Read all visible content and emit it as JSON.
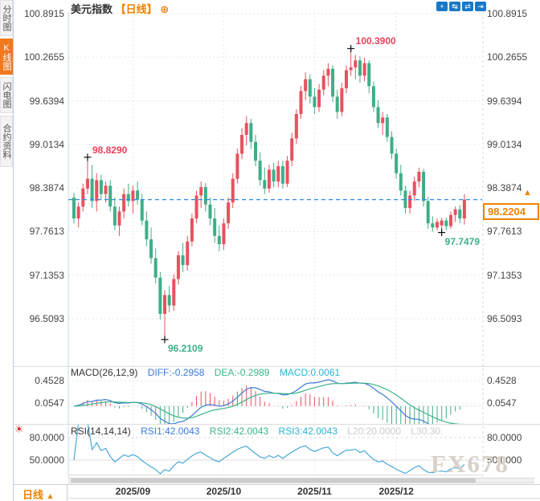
{
  "watermark": "FX678",
  "icons": {
    "blink": "☀"
  },
  "sidebar": {
    "tabs": [
      {
        "label": "分时图",
        "active": false
      },
      {
        "label": "K线图",
        "active": true
      },
      {
        "label": "闪电图",
        "active": false
      },
      {
        "label": "合约资料",
        "active": false
      }
    ]
  },
  "header": {
    "title": "美元指数",
    "period_tag": "【日线】",
    "add_icon": "⊕",
    "toolbar": [
      {
        "name": "crosshair-tool",
        "glyph": "+"
      },
      {
        "name": "zoom-range-tool",
        "glyph": "↹"
      },
      {
        "name": "zoom-scale-tool",
        "glyph": "⇄"
      },
      {
        "name": "pan-right-tool",
        "glyph": "⇥"
      }
    ]
  },
  "price_axis": {
    "labels": [
      "100.8915",
      "100.2655",
      "99.6394",
      "99.0134",
      "98.3874",
      "97.7613",
      "97.1353",
      "96.5093"
    ]
  },
  "current_price": {
    "value": "98.2204",
    "arrow": "▲"
  },
  "macd_panel": {
    "legend": {
      "name": "MACD(26,12,9)",
      "diff": "DIFF:-0.2958",
      "dea": "DEA:-0.2989",
      "macd": "MACD:0.0061"
    },
    "axis_labels": [
      "0.4528",
      "0.0547"
    ]
  },
  "rsi_panel": {
    "legend": {
      "name": "RSI(14,14,14)",
      "rsi1": "RSI1:42.0043",
      "rsi2": "RSI2:42.0043",
      "rsi3": "RSI3:42.0043",
      "l20": "L20:20.0000",
      "l30": "L30:30."
    },
    "axis_labels": [
      "80.0000",
      "50.0000"
    ]
  },
  "x_axis": {
    "labels": [
      "2025/09",
      "2025/10",
      "2025/11",
      "2025/12"
    ]
  },
  "footer": {
    "period": "日线",
    "arrow": "▲"
  },
  "colors": {
    "up": "#e8515f",
    "down": "#3fae87",
    "accent_orange": "#f08200",
    "current_line": "#2b8ced",
    "diff_line": "#3a7bd5",
    "dea_line": "#3cb487",
    "rsi_line": "#4aa8d8",
    "grid": "#e6e6e6",
    "axis_text": "#444444"
  },
  "chart_data": {
    "type": "candlestick",
    "title": "美元指数 日线",
    "ylim": [
      96.1,
      100.95
    ],
    "y_ticks": [
      100.8915,
      100.2655,
      99.6394,
      99.0134,
      98.3874,
      97.7613,
      97.1353,
      96.5093
    ],
    "x_tick_labels": [
      "2025/09",
      "2025/10",
      "2025/11",
      "2025/12"
    ],
    "x_tick_indices": [
      13,
      33,
      53,
      71
    ],
    "current_price": 98.2204,
    "markers": [
      {
        "index": 3,
        "price": 98.829,
        "label": "98.8290",
        "dir": "high",
        "color": "red"
      },
      {
        "index": 20,
        "price": 96.2109,
        "label": "96.2109",
        "dir": "low",
        "color": "green"
      },
      {
        "index": 61,
        "price": 100.39,
        "label": "100.3900",
        "dir": "high",
        "color": "red"
      },
      {
        "index": 81,
        "price": 97.7479,
        "label": "97.7479",
        "dir": "low",
        "color": "green"
      }
    ],
    "indicators": {
      "macd": {
        "params": [
          26,
          12,
          9
        ],
        "diff": -0.2958,
        "dea": -0.2989,
        "macd": 0.0061
      },
      "rsi": {
        "params": [
          14,
          14,
          14
        ],
        "rsi1": 42.0043,
        "rsi2": 42.0043,
        "rsi3": 42.0043,
        "l20": 20.0,
        "l30": 30.0
      }
    },
    "candles": [
      [
        98.25,
        98.32,
        97.88,
        97.95
      ],
      [
        97.95,
        98.18,
        97.82,
        98.12
      ],
      [
        98.12,
        98.45,
        98.05,
        98.38
      ],
      [
        98.38,
        98.829,
        98.3,
        98.52
      ],
      [
        98.52,
        98.72,
        98.1,
        98.2
      ],
      [
        98.2,
        98.6,
        98.05,
        98.5
      ],
      [
        98.5,
        98.58,
        98.22,
        98.3
      ],
      [
        98.3,
        98.48,
        98.18,
        98.42
      ],
      [
        98.42,
        98.5,
        98.05,
        98.12
      ],
      [
        98.12,
        98.25,
        97.78,
        97.85
      ],
      [
        97.85,
        98.12,
        97.7,
        98.05
      ],
      [
        98.05,
        98.38,
        97.95,
        98.3
      ],
      [
        98.3,
        98.45,
        98.12,
        98.2
      ],
      [
        98.2,
        98.42,
        98.02,
        98.35
      ],
      [
        98.35,
        98.48,
        98.15,
        98.22
      ],
      [
        98.22,
        98.3,
        97.85,
        97.92
      ],
      [
        97.92,
        98.05,
        97.55,
        97.65
      ],
      [
        97.65,
        97.82,
        97.3,
        97.38
      ],
      [
        97.38,
        97.52,
        97.02,
        97.1
      ],
      [
        97.1,
        97.18,
        96.5,
        96.58
      ],
      [
        96.58,
        96.92,
        96.2109,
        96.85
      ],
      [
        96.85,
        96.98,
        96.6,
        96.7
      ],
      [
        96.7,
        97.15,
        96.62,
        97.08
      ],
      [
        97.08,
        97.48,
        97.0,
        97.42
      ],
      [
        97.42,
        97.6,
        97.18,
        97.28
      ],
      [
        97.28,
        97.7,
        97.2,
        97.62
      ],
      [
        97.62,
        98.02,
        97.55,
        97.95
      ],
      [
        97.95,
        98.35,
        97.88,
        98.28
      ],
      [
        98.28,
        98.48,
        98.1,
        98.4
      ],
      [
        98.4,
        98.46,
        98.05,
        98.15
      ],
      [
        98.15,
        98.25,
        97.85,
        97.95
      ],
      [
        97.95,
        98.1,
        97.6,
        97.7
      ],
      [
        97.7,
        97.85,
        97.48,
        97.58
      ],
      [
        97.58,
        97.95,
        97.5,
        97.88
      ],
      [
        97.88,
        98.25,
        97.8,
        98.18
      ],
      [
        98.18,
        98.6,
        98.1,
        98.52
      ],
      [
        98.52,
        98.95,
        98.45,
        98.88
      ],
      [
        98.88,
        99.25,
        98.8,
        99.15
      ],
      [
        99.15,
        99.42,
        99.0,
        99.32
      ],
      [
        99.32,
        99.38,
        98.95,
        99.05
      ],
      [
        99.05,
        99.15,
        98.7,
        98.78
      ],
      [
        98.78,
        98.9,
        98.42,
        98.5
      ],
      [
        98.5,
        98.68,
        98.3,
        98.38
      ],
      [
        98.38,
        98.72,
        98.32,
        98.65
      ],
      [
        98.65,
        98.75,
        98.4,
        98.48
      ],
      [
        98.48,
        98.78,
        98.4,
        98.7
      ],
      [
        98.7,
        98.78,
        98.38,
        98.45
      ],
      [
        98.45,
        98.85,
        98.4,
        98.78
      ],
      [
        98.78,
        99.18,
        98.7,
        99.1
      ],
      [
        99.1,
        99.52,
        99.02,
        99.45
      ],
      [
        99.45,
        99.85,
        99.38,
        99.78
      ],
      [
        99.78,
        100.05,
        99.65,
        99.95
      ],
      [
        99.95,
        100.02,
        99.6,
        99.7
      ],
      [
        99.7,
        99.82,
        99.45,
        99.55
      ],
      [
        99.55,
        99.88,
        99.48,
        99.8
      ],
      [
        99.8,
        100.08,
        99.72,
        100.0
      ],
      [
        100.0,
        100.18,
        99.85,
        100.1
      ],
      [
        100.1,
        100.15,
        99.62,
        99.7
      ],
      [
        99.7,
        99.8,
        99.38,
        99.48
      ],
      [
        99.48,
        99.9,
        99.42,
        99.82
      ],
      [
        99.82,
        100.15,
        99.75,
        100.08
      ],
      [
        100.08,
        100.39,
        100.0,
        100.12
      ],
      [
        100.12,
        100.3,
        99.95,
        100.22
      ],
      [
        100.22,
        100.28,
        99.9,
        100.0
      ],
      [
        100.0,
        100.26,
        99.92,
        100.18
      ],
      [
        100.18,
        100.22,
        99.75,
        99.85
      ],
      [
        99.85,
        99.92,
        99.48,
        99.55
      ],
      [
        99.55,
        99.65,
        99.25,
        99.32
      ],
      [
        99.32,
        99.48,
        99.15,
        99.4
      ],
      [
        99.4,
        99.45,
        99.05,
        99.12
      ],
      [
        99.12,
        99.2,
        98.8,
        98.88
      ],
      [
        98.88,
        98.95,
        98.52,
        98.6
      ],
      [
        98.6,
        98.72,
        98.28,
        98.35
      ],
      [
        98.35,
        98.42,
        98.02,
        98.1
      ],
      [
        98.1,
        98.35,
        98.02,
        98.28
      ],
      [
        98.28,
        98.55,
        98.2,
        98.48
      ],
      [
        98.48,
        98.68,
        98.4,
        98.62
      ],
      [
        98.62,
        98.66,
        98.12,
        98.2
      ],
      [
        98.2,
        98.26,
        97.8,
        97.88
      ],
      [
        97.88,
        97.98,
        97.76,
        97.82
      ],
      [
        97.82,
        97.95,
        97.78,
        97.9
      ],
      [
        97.85,
        97.96,
        97.7479,
        97.92
      ],
      [
        97.92,
        97.96,
        97.78,
        97.84
      ],
      [
        97.84,
        98.05,
        97.8,
        98.0
      ],
      [
        98.0,
        98.12,
        97.9,
        98.08
      ],
      [
        98.08,
        98.14,
        97.88,
        97.95
      ],
      [
        97.95,
        98.3,
        97.86,
        98.2204
      ]
    ]
  }
}
